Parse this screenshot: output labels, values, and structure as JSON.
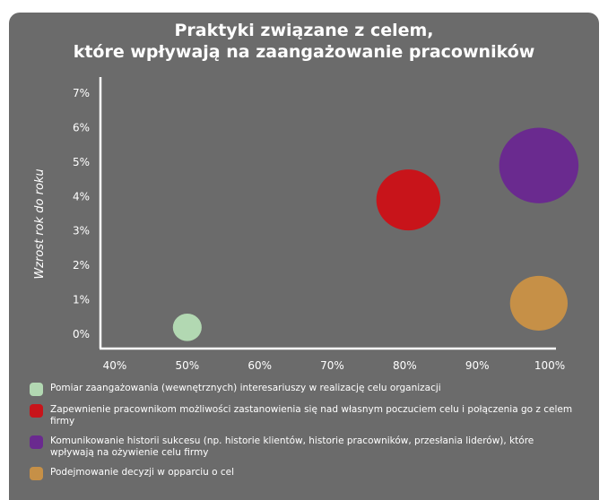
{
  "chart_data": {
    "type": "scatter",
    "title_lines": [
      "Praktyki związane z celem,",
      "które wpływają na zaangażowanie pracowników"
    ],
    "ylabel": "Wzrost rok do roku",
    "xlabel": "",
    "x_ticks": [
      "40%",
      "50%",
      "60%",
      "70%",
      "80%",
      "90%",
      "100%"
    ],
    "y_ticks": [
      "0%",
      "1%",
      "2%",
      "3%",
      "4%",
      "5%",
      "6%",
      "7%"
    ],
    "xlim": [
      40,
      100
    ],
    "ylim": [
      0,
      7
    ],
    "series": [
      {
        "name": "Pomiar zaangażowania (wewnętrznych) interesariuszy w realizację celu organizacji",
        "color": "#b2d8b2",
        "x": 50,
        "y": 0.2,
        "size": 0.45
      },
      {
        "name": "Zapewnienie pracownikom możliwości zastanowienia się nad własnym poczuciem celu i połączenia go z celem firmy",
        "color": "#c8141a",
        "x": 80.5,
        "y": 3.9,
        "size": 1.0
      },
      {
        "name": "Komunikowanie historii sukcesu (np. historie klientów, historie pracowników, przesłania liderów), które wpływają na ożywienie celu firmy",
        "color": "#6a2a8f",
        "x": 98.5,
        "y": 4.9,
        "size": 1.24
      },
      {
        "name": "Podejmowanie decyzji w opparciu o cel",
        "color": "#c69047",
        "x": 98.5,
        "y": 0.9,
        "size": 0.9
      }
    ],
    "grid": false,
    "legend_position": "bottom"
  }
}
